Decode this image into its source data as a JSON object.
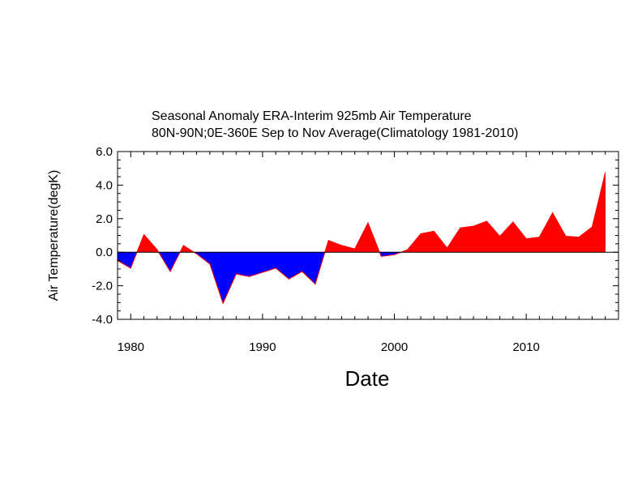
{
  "chart_data": {
    "type": "area",
    "title": "Seasonal Anomaly ERA-Interim 925mb  Air Temperature",
    "subtitle": "80N-90N;0E-360E Sep to Nov Average(Climatology 1981-2010)",
    "xlabel": "Date",
    "ylabel": "Air Temperature(degK)",
    "xlim": [
      1979,
      2017
    ],
    "ylim": [
      -4.0,
      6.0
    ],
    "x_major_ticks": [
      1980,
      1990,
      2000,
      2010
    ],
    "x_tick_labels": [
      "1980",
      "1990",
      "2000",
      "2010"
    ],
    "y_major_ticks": [
      -4.0,
      -2.0,
      0.0,
      2.0,
      4.0,
      6.0
    ],
    "y_tick_labels": [
      "-4.0",
      "-2.0",
      "0.0",
      "2.0",
      "4.0",
      "6.0"
    ],
    "baseline": 0.0,
    "positive_color": "#ff0000",
    "negative_color": "#0000ff",
    "x": [
      1979,
      1980,
      1981,
      1982,
      1983,
      1984,
      1985,
      1986,
      1987,
      1988,
      1989,
      1990,
      1991,
      1992,
      1993,
      1994,
      1995,
      1996,
      1997,
      1998,
      1999,
      2000,
      2001,
      2002,
      2003,
      2004,
      2005,
      2006,
      2007,
      2008,
      2009,
      2010,
      2011,
      2012,
      2013,
      2014,
      2015,
      2016
    ],
    "series": [
      {
        "values": [
          -0.5,
          -0.95,
          1.05,
          0.15,
          -1.15,
          0.4,
          -0.1,
          -0.7,
          -3.05,
          -1.3,
          -1.45,
          -1.2,
          -0.95,
          -1.6,
          -1.15,
          -1.9,
          0.7,
          0.4,
          0.2,
          1.75,
          -0.25,
          -0.15,
          0.15,
          1.1,
          1.25,
          0.25,
          1.45,
          1.55,
          1.85,
          0.95,
          1.8,
          0.8,
          0.9,
          2.35,
          0.95,
          0.9,
          1.5,
          4.75
        ]
      }
    ]
  }
}
